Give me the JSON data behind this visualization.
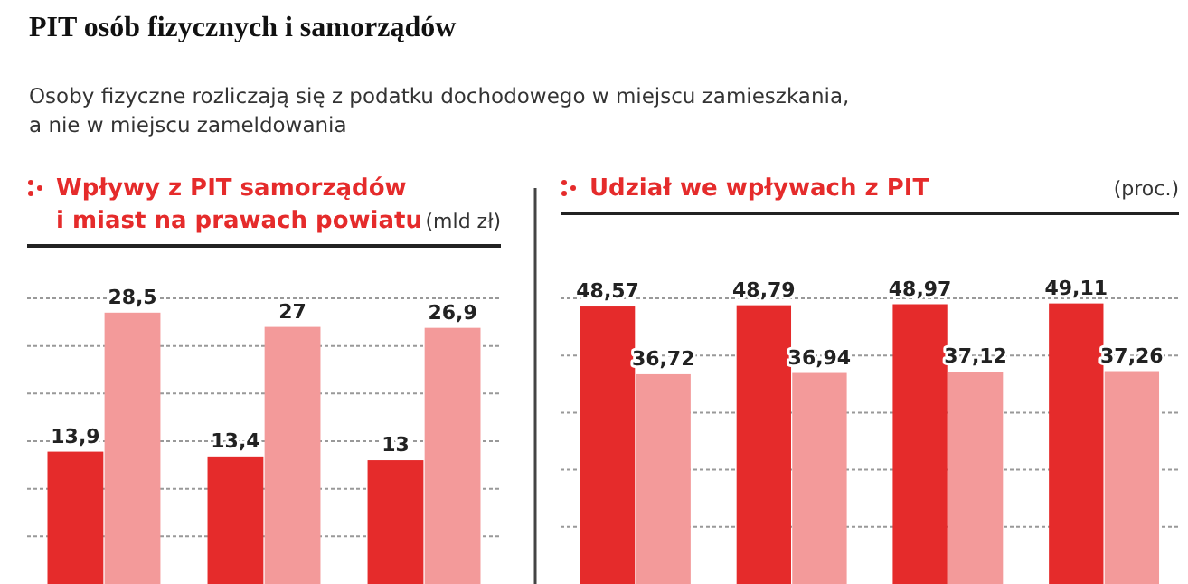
{
  "chart_data": [
    {
      "type": "bar",
      "title": "Wpływy z PIT samorządów\ni miast na prawach powiatu",
      "ylabel": "(mld zł)",
      "annotations": [
        "PIT osób fizycznych i samorządów",
        "Osoby fizyczne rozliczają się z podatku dochodowego w miejscu zamieszkania,\na nie w miejscu zameldowania"
      ],
      "categories": [
        null,
        null,
        null
      ],
      "series": [
        {
          "color": "#e52b2b",
          "values": [
            13.9,
            13.4,
            13
          ],
          "value_labels": [
            "13,9",
            "13,4",
            "13"
          ]
        },
        {
          "color": "#f39a9a",
          "values": [
            28.5,
            27,
            26.9
          ],
          "value_labels": [
            "28,5",
            "27",
            "26,9"
          ]
        }
      ],
      "ylim": [
        0,
        30
      ],
      "yticks": [
        {
          "value": 5,
          "label": null
        },
        {
          "value": 10,
          "label": null
        },
        {
          "value": 15,
          "label": null
        },
        {
          "value": 20,
          "label": null
        },
        {
          "value": 25,
          "label": null
        },
        {
          "value": 30,
          "label": null
        }
      ],
      "grid": "y"
    },
    {
      "type": "bar",
      "title": "Udział we wpływach z PIT",
      "ylabel": "(proc.)",
      "categories": [
        null,
        null,
        null,
        null
      ],
      "series": [
        {
          "color": "#e52b2b",
          "values": [
            48.57,
            48.79,
            48.97,
            49.11
          ],
          "value_labels": [
            "48,57",
            "48,79",
            "48,97",
            "49,11"
          ]
        },
        {
          "color": "#f39a9a",
          "values": [
            36.72,
            36.94,
            37.12,
            37.26
          ],
          "value_labels": [
            "36,72",
            "36,94",
            "37,12",
            "37,26"
          ]
        }
      ],
      "ylim": [
        0,
        50
      ],
      "yticks": [
        {
          "value": 10,
          "label": null
        },
        {
          "value": 20,
          "label": null
        },
        {
          "value": 30,
          "label": null
        },
        {
          "value": 40,
          "label": null
        },
        {
          "value": 50,
          "label": null
        }
      ],
      "grid": "y"
    }
  ]
}
